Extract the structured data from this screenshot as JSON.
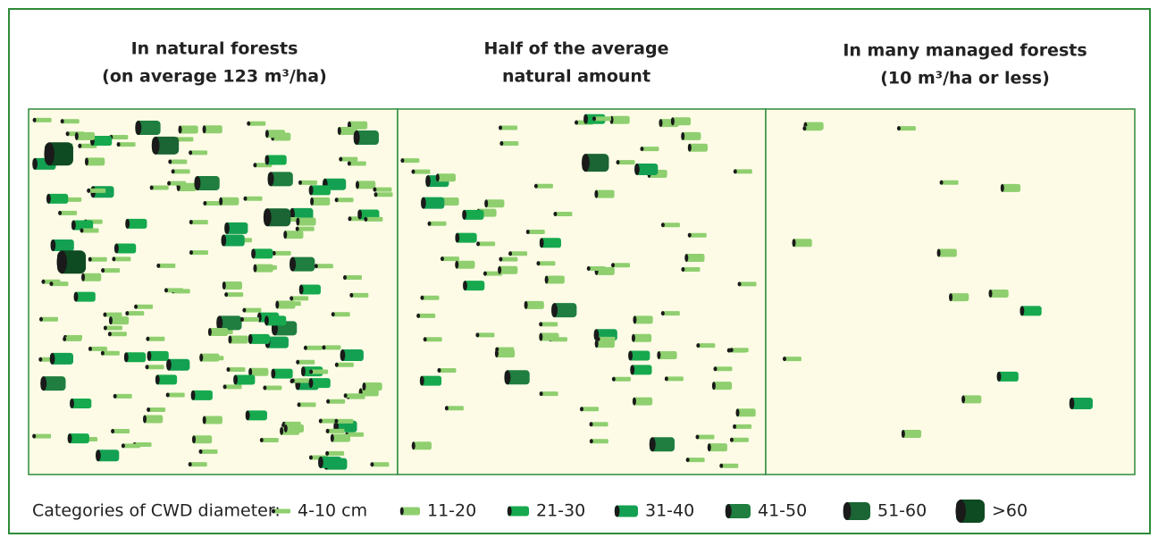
{
  "panels": [
    {
      "title": [
        "In natural forests",
        "(on average 123 m³/ha)"
      ]
    },
    {
      "title": [
        "Half of the average",
        "natural amount"
      ]
    },
    {
      "title": [
        "In many managed forests",
        "(10 m³/ha or less)"
      ]
    }
  ],
  "legend": {
    "label": "Categories of CWD diameter:",
    "items": [
      "4-10 cm",
      "11-20",
      "21-30",
      "31-40",
      "41-50",
      "51-60",
      ">60"
    ]
  }
}
